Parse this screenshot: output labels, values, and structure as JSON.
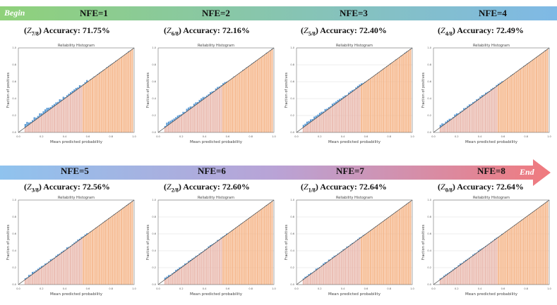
{
  "colors": {
    "bar_blue": "#5b9bd5",
    "bar_orange": "#f4b183",
    "bar_pink": "#e8b4a8",
    "diagonal": "#333333"
  },
  "banner_top": {
    "begin_label": "Begin",
    "colors": [
      "#8fd17a",
      "#7fb9e6"
    ]
  },
  "banner_bottom": {
    "end_label": "End",
    "colors": [
      "#8fc3ee",
      "#b9a3d6",
      "#f07a7e"
    ]
  },
  "panels": [
    {
      "nfe": "NFE=1",
      "z_sub": "7/8",
      "accuracy": "Accuracy: 71.75%"
    },
    {
      "nfe": "NFE=2",
      "z_sub": "6/8",
      "accuracy": "Accuracy: 72.16%"
    },
    {
      "nfe": "NFE=3",
      "z_sub": "5/8",
      "accuracy": "Accuracy: 72.40%"
    },
    {
      "nfe": "NFE=4",
      "z_sub": "4/8",
      "accuracy": "Accuracy: 72.49%"
    },
    {
      "nfe": "NFE=5",
      "z_sub": "3/8",
      "accuracy": "Accuracy: 72.56%"
    },
    {
      "nfe": "NFE=6",
      "z_sub": "2/8",
      "accuracy": "Accuracy: 72.60%"
    },
    {
      "nfe": "NFE=7",
      "z_sub": "1/8",
      "accuracy": "Accuracy: 72.64%"
    },
    {
      "nfe": "NFE=8",
      "z_sub": "0/8",
      "accuracy": "Accuracy: 72.64%"
    }
  ],
  "chart_data": [
    {
      "type": "bar",
      "title": "Reliability Histogram",
      "xlabel": "Mean predicted probability",
      "ylabel": "Fraction of positives",
      "xlim": [
        0,
        1
      ],
      "ylim": [
        0,
        1
      ],
      "xticks": [
        "0.0",
        "0.2",
        "0.4",
        "0.6",
        "0.8",
        "1.0"
      ],
      "yticks": [
        "0.0",
        "0.2",
        "0.4",
        "0.6",
        "0.8",
        "1.0"
      ],
      "grid": false,
      "gap_scale": 0.04,
      "seed": 11
    },
    {
      "type": "bar",
      "title": "Reliability Histogram",
      "xlabel": "Mean predicted probability",
      "ylabel": "Fraction of positives",
      "xlim": [
        0,
        1
      ],
      "ylim": [
        0,
        1
      ],
      "xticks": [
        "0.0",
        "0.2",
        "0.4",
        "0.6",
        "0.8",
        "1.0"
      ],
      "yticks": [
        "0.0",
        "0.2",
        "0.4",
        "0.6",
        "0.8",
        "1.0"
      ],
      "grid": false,
      "gap_scale": 0.032,
      "seed": 23
    },
    {
      "type": "bar",
      "title": "Reliability Histogram",
      "xlabel": "Mean predicted probability",
      "ylabel": "Fraction of positives",
      "xlim": [
        0,
        1
      ],
      "ylim": [
        0,
        1
      ],
      "xticks": [
        "0.0",
        "0.2",
        "0.4",
        "0.6",
        "0.8",
        "1.0"
      ],
      "yticks": [
        "0.0",
        "0.2",
        "0.4",
        "0.6",
        "0.8",
        "1.0"
      ],
      "grid": true,
      "gap_scale": 0.028,
      "seed": 37
    },
    {
      "type": "bar",
      "title": "Reliability Histogram",
      "xlabel": "Mean predicted probability",
      "ylabel": "Fraction of positives",
      "xlim": [
        0,
        1
      ],
      "ylim": [
        0,
        1
      ],
      "xticks": [
        "0.0",
        "0.2",
        "0.4",
        "0.6",
        "0.8",
        "1.0"
      ],
      "yticks": [
        "0.0",
        "0.2",
        "0.4",
        "0.6",
        "0.8",
        "1.0"
      ],
      "grid": false,
      "gap_scale": 0.024,
      "seed": 41
    },
    {
      "type": "bar",
      "title": "Reliability Histogram",
      "xlabel": "Mean predicted probability",
      "ylabel": "Fraction of positives",
      "xlim": [
        0,
        1
      ],
      "ylim": [
        0,
        1
      ],
      "xticks": [
        "0.0",
        "0.2",
        "0.4",
        "0.6",
        "0.8",
        "1.0"
      ],
      "yticks": [
        "0.0",
        "0.2",
        "0.4",
        "0.6",
        "0.8",
        "1.0"
      ],
      "grid": false,
      "gap_scale": 0.022,
      "seed": 53
    },
    {
      "type": "bar",
      "title": "Reliability Histogram",
      "xlabel": "Mean predicted probability",
      "ylabel": "Fraction of positives",
      "xlim": [
        0,
        1
      ],
      "ylim": [
        0,
        1
      ],
      "xticks": [
        "0.0",
        "0.2",
        "0.4",
        "0.6",
        "0.8",
        "1.0"
      ],
      "yticks": [
        "0.0",
        "0.2",
        "0.4",
        "0.6",
        "0.8",
        "1.0"
      ],
      "grid": true,
      "gap_scale": 0.018,
      "seed": 67
    },
    {
      "type": "bar",
      "title": "Reliability Histogram",
      "xlabel": "Mean predicted probability",
      "ylabel": "Fraction of positives",
      "xlim": [
        0,
        1
      ],
      "ylim": [
        0,
        1
      ],
      "xticks": [
        "0.0",
        "0.2",
        "0.4",
        "0.6",
        "0.8",
        "1.0"
      ],
      "yticks": [
        "0.0",
        "0.2",
        "0.4",
        "0.6",
        "0.8",
        "1.0"
      ],
      "grid": true,
      "gap_scale": 0.016,
      "seed": 79
    },
    {
      "type": "bar",
      "title": "Reliability Histogram",
      "xlabel": "Mean predicted probability",
      "ylabel": "Fraction of positives",
      "xlim": [
        0,
        1
      ],
      "ylim": [
        0,
        1
      ],
      "xticks": [
        "0.0",
        "0.2",
        "0.4",
        "0.6",
        "0.8",
        "1.0"
      ],
      "yticks": [
        "0.0",
        "0.2",
        "0.4",
        "0.6",
        "0.8",
        "1.0"
      ],
      "grid": true,
      "gap_scale": 0.015,
      "seed": 83
    }
  ]
}
